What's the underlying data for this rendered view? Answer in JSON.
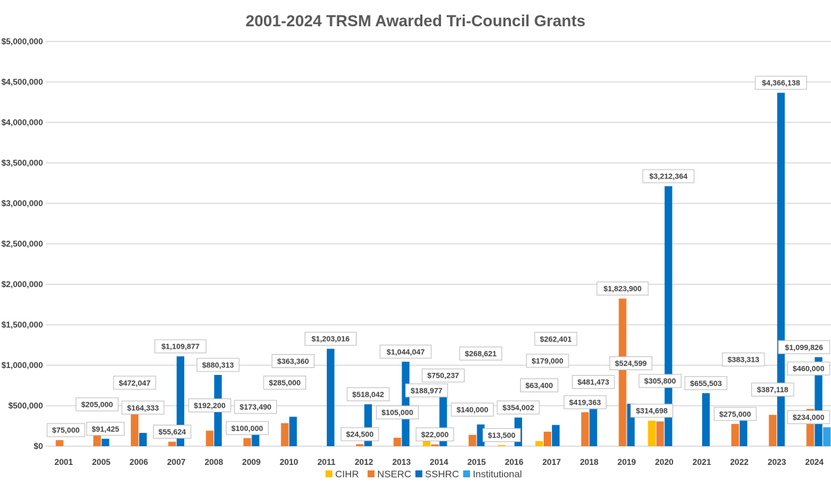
{
  "chart_data": {
    "type": "bar",
    "title": "2001-2024 TRSM Awarded Tri-Council Grants",
    "xlabel": "",
    "ylabel": "",
    "ylim": [
      0,
      5000000
    ],
    "grid": true,
    "legend_position": "bottom",
    "yticks": [
      "$0",
      "$500,000",
      "$1,000,000",
      "$1,500,000",
      "$2,000,000",
      "$2,500,000",
      "$3,000,000",
      "$3,500,000",
      "$4,000,000",
      "$4,500,000",
      "$5,000,000"
    ],
    "categories": [
      "2001",
      "2005",
      "2006",
      "2007",
      "2008",
      "2009",
      "2010",
      "2011",
      "2012",
      "2013",
      "2014",
      "2015",
      "2016",
      "2017",
      "2018",
      "2019",
      "2020",
      "2021",
      "2022",
      "2023",
      "2024"
    ],
    "series": [
      {
        "name": "CIHR",
        "color": "#FFC000",
        "values": [
          null,
          null,
          null,
          null,
          null,
          null,
          null,
          null,
          null,
          null,
          188977,
          null,
          13500,
          63400,
          null,
          null,
          314698,
          null,
          null,
          null,
          null
        ]
      },
      {
        "name": "NSERC",
        "color": "#ED7D31",
        "values": [
          75000,
          205000,
          472047,
          55624,
          192200,
          100000,
          285000,
          null,
          24500,
          105000,
          22000,
          140000,
          null,
          179000,
          419363,
          1823900,
          305800,
          null,
          275000,
          387118,
          460000
        ]
      },
      {
        "name": "SSHRC",
        "color": "#0070C0",
        "values": [
          null,
          91425,
          164333,
          1109877,
          880313,
          173490,
          363360,
          1203016,
          518042,
          1044047,
          750237,
          268621,
          354002,
          262401,
          481473,
          524599,
          3212364,
          655503,
          383313,
          4366138,
          1099826
        ]
      },
      {
        "name": "Institutional",
        "color": "#2EA3E8",
        "values": [
          null,
          null,
          null,
          null,
          null,
          null,
          null,
          null,
          null,
          null,
          null,
          null,
          null,
          null,
          null,
          null,
          null,
          null,
          null,
          null,
          234000
        ]
      }
    ]
  }
}
